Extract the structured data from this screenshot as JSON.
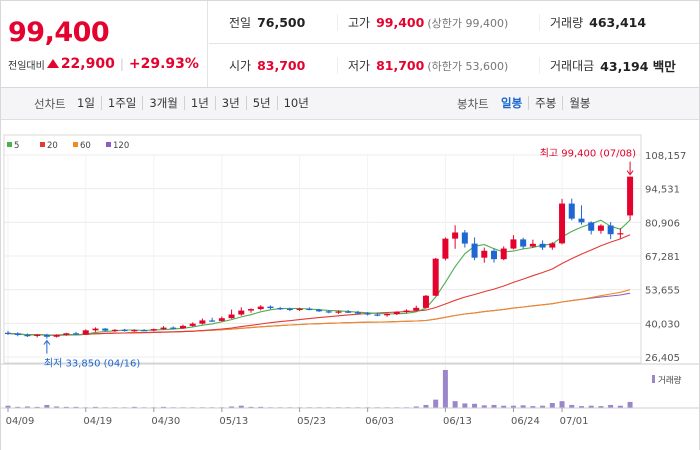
{
  "quote": {
    "current_price": "99,400",
    "change_label": "전일대비",
    "change_abs": "22,900",
    "change_pct": "+29.93%",
    "colors": {
      "up": "#e4032e",
      "down": "#1f67d2"
    }
  },
  "stats": {
    "prev_close_label": "전일",
    "prev_close": "76,500",
    "high_label": "고가",
    "high": "99,400",
    "upper_limit_note": "(상한가 99,400)",
    "volume_label": "거래량",
    "volume": "463,414",
    "open_label": "시가",
    "open": "83,700",
    "low_label": "저가",
    "low": "81,700",
    "lower_limit_note": "(하한가 53,600)",
    "trade_value_label": "거래대금",
    "trade_value": "43,194 백만"
  },
  "toolbar": {
    "period_label": "선차트",
    "periods": [
      "1일",
      "1주일",
      "3개월",
      "1년",
      "3년",
      "5년",
      "10년"
    ],
    "candle_label": "봉차트",
    "candles": [
      "일봉",
      "주봉",
      "월봉"
    ],
    "active_candle": "일봉"
  },
  "chart_data": {
    "type": "candlestick",
    "legend": [
      {
        "name": "5",
        "color": "#4caf50"
      },
      {
        "name": "20",
        "color": "#e53935"
      },
      {
        "name": "60",
        "color": "#f28a1f"
      },
      {
        "name": "120",
        "color": "#8e5cc4"
      }
    ],
    "y_ticks": [
      "108,157",
      "94,531",
      "80,906",
      "67,281",
      "53,655",
      "40,030",
      "26,405"
    ],
    "ylim": [
      26405,
      108157
    ],
    "x_ticks": [
      {
        "label": "04/09",
        "index": 0
      },
      {
        "label": "04/19",
        "index": 8
      },
      {
        "label": "04/30",
        "index": 15
      },
      {
        "label": "05/13",
        "index": 22
      },
      {
        "label": "05/23",
        "index": 30
      },
      {
        "label": "06/03",
        "index": 37
      },
      {
        "label": "06/13",
        "index": 45
      },
      {
        "label": "06/24",
        "index": 52
      },
      {
        "label": "07/01",
        "index": 57
      }
    ],
    "max_label": "최고 99,400 (07/08)",
    "min_label": "최저 33,850 (04/16)",
    "volume_legend": "거래량",
    "candles": [
      {
        "o": 36200,
        "h": 37000,
        "l": 35300,
        "c": 36000
      },
      {
        "o": 36000,
        "h": 36400,
        "l": 34800,
        "c": 35300
      },
      {
        "o": 35300,
        "h": 35900,
        "l": 34500,
        "c": 35000
      },
      {
        "o": 35000,
        "h": 35600,
        "l": 34300,
        "c": 35400
      },
      {
        "o": 35400,
        "h": 35800,
        "l": 33850,
        "c": 34600
      },
      {
        "o": 34600,
        "h": 35600,
        "l": 34300,
        "c": 35300
      },
      {
        "o": 35300,
        "h": 36200,
        "l": 35000,
        "c": 36000
      },
      {
        "o": 36000,
        "h": 36600,
        "l": 35200,
        "c": 35500
      },
      {
        "o": 35500,
        "h": 37600,
        "l": 35300,
        "c": 37200
      },
      {
        "o": 37200,
        "h": 38400,
        "l": 36600,
        "c": 37900
      },
      {
        "o": 37900,
        "h": 38100,
        "l": 36800,
        "c": 37100
      },
      {
        "o": 37100,
        "h": 37700,
        "l": 36500,
        "c": 37400
      },
      {
        "o": 37400,
        "h": 37800,
        "l": 36700,
        "c": 37000
      },
      {
        "o": 37000,
        "h": 37600,
        "l": 36600,
        "c": 37300
      },
      {
        "o": 37300,
        "h": 37700,
        "l": 36900,
        "c": 37100
      },
      {
        "o": 37100,
        "h": 37900,
        "l": 36800,
        "c": 37700
      },
      {
        "o": 37700,
        "h": 38900,
        "l": 37400,
        "c": 38300
      },
      {
        "o": 38300,
        "h": 38800,
        "l": 37600,
        "c": 38000
      },
      {
        "o": 38000,
        "h": 39500,
        "l": 37800,
        "c": 39000
      },
      {
        "o": 39000,
        "h": 40400,
        "l": 38700,
        "c": 39900
      },
      {
        "o": 39900,
        "h": 42000,
        "l": 39600,
        "c": 41200
      },
      {
        "o": 41200,
        "h": 42300,
        "l": 40600,
        "c": 41000
      },
      {
        "o": 41000,
        "h": 42800,
        "l": 40800,
        "c": 42100
      },
      {
        "o": 42100,
        "h": 45600,
        "l": 41900,
        "c": 43600
      },
      {
        "o": 43600,
        "h": 46500,
        "l": 43100,
        "c": 45200
      },
      {
        "o": 45200,
        "h": 46100,
        "l": 44300,
        "c": 45800
      },
      {
        "o": 45800,
        "h": 47400,
        "l": 45300,
        "c": 46800
      },
      {
        "o": 46800,
        "h": 47300,
        "l": 45700,
        "c": 46200
      },
      {
        "o": 46200,
        "h": 46700,
        "l": 45400,
        "c": 45900
      },
      {
        "o": 45900,
        "h": 46400,
        "l": 45000,
        "c": 45500
      },
      {
        "o": 45500,
        "h": 46300,
        "l": 45000,
        "c": 45900
      },
      {
        "o": 45900,
        "h": 46500,
        "l": 45300,
        "c": 45600
      },
      {
        "o": 45600,
        "h": 45900,
        "l": 44600,
        "c": 44900
      },
      {
        "o": 44900,
        "h": 45300,
        "l": 44100,
        "c": 44400
      },
      {
        "o": 44400,
        "h": 45200,
        "l": 43900,
        "c": 44800
      },
      {
        "o": 44800,
        "h": 45400,
        "l": 44200,
        "c": 44500
      },
      {
        "o": 44500,
        "h": 45100,
        "l": 43800,
        "c": 44100
      },
      {
        "o": 44100,
        "h": 44600,
        "l": 43200,
        "c": 43600
      },
      {
        "o": 43600,
        "h": 44300,
        "l": 42900,
        "c": 43300
      },
      {
        "o": 43300,
        "h": 44100,
        "l": 42700,
        "c": 43800
      },
      {
        "o": 43800,
        "h": 44900,
        "l": 43400,
        "c": 44600
      },
      {
        "o": 44600,
        "h": 45700,
        "l": 44200,
        "c": 45200
      },
      {
        "o": 45200,
        "h": 47200,
        "l": 44900,
        "c": 46300
      },
      {
        "o": 46300,
        "h": 51500,
        "l": 46100,
        "c": 51200
      },
      {
        "o": 51200,
        "h": 66500,
        "l": 51000,
        "c": 66200
      },
      {
        "o": 66200,
        "h": 74800,
        "l": 65500,
        "c": 74300
      },
      {
        "o": 74300,
        "h": 79700,
        "l": 70200,
        "c": 76800
      },
      {
        "o": 76800,
        "h": 77800,
        "l": 70700,
        "c": 72300
      },
      {
        "o": 72300,
        "h": 74800,
        "l": 65600,
        "c": 66600
      },
      {
        "o": 66600,
        "h": 70700,
        "l": 64600,
        "c": 69400
      },
      {
        "o": 69400,
        "h": 70300,
        "l": 64600,
        "c": 66000
      },
      {
        "o": 66000,
        "h": 71200,
        "l": 65600,
        "c": 70300
      },
      {
        "o": 70300,
        "h": 75700,
        "l": 69900,
        "c": 74000
      },
      {
        "o": 74000,
        "h": 74700,
        "l": 70300,
        "c": 71100
      },
      {
        "o": 71100,
        "h": 73900,
        "l": 70600,
        "c": 72200
      },
      {
        "o": 72200,
        "h": 73600,
        "l": 69700,
        "c": 70700
      },
      {
        "o": 70700,
        "h": 72900,
        "l": 69800,
        "c": 72400
      },
      {
        "o": 72400,
        "h": 90400,
        "l": 72000,
        "c": 88500
      },
      {
        "o": 88500,
        "h": 90500,
        "l": 81700,
        "c": 82400
      },
      {
        "o": 82400,
        "h": 87800,
        "l": 80000,
        "c": 80900
      },
      {
        "o": 80900,
        "h": 81300,
        "l": 76000,
        "c": 77500
      },
      {
        "o": 77500,
        "h": 80100,
        "l": 76300,
        "c": 79600
      },
      {
        "o": 79600,
        "h": 81000,
        "l": 74100,
        "c": 76100
      },
      {
        "o": 76100,
        "h": 78500,
        "l": 74300,
        "c": 76500
      },
      {
        "o": 83700,
        "h": 99400,
        "l": 81700,
        "c": 99400
      }
    ],
    "volumes": [
      6,
      3,
      4,
      3,
      8,
      4,
      3,
      3,
      2,
      3,
      2,
      2,
      2,
      3,
      2,
      2,
      3,
      2,
      2,
      2,
      2,
      2,
      2,
      4,
      6,
      3,
      3,
      2,
      2,
      2,
      2,
      2,
      2,
      2,
      2,
      2,
      2,
      2,
      2,
      2,
      2,
      2,
      4,
      8,
      22,
      100,
      18,
      12,
      11,
      7,
      8,
      6,
      6,
      7,
      5,
      6,
      13,
      18,
      8,
      5,
      6,
      5,
      8,
      6,
      16
    ]
  }
}
